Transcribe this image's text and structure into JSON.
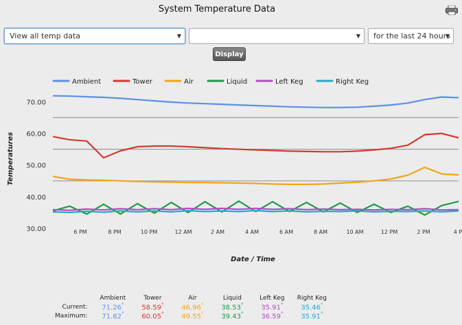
{
  "page": {
    "title": "System Temperature Data"
  },
  "controls": {
    "select1": "View all temp data",
    "select2": "",
    "select3": "for the last 24 hours",
    "display_button": "Display"
  },
  "colors": {
    "Ambient": "#5b8fe8",
    "Tower": "#d23a2f",
    "Air": "#f2a516",
    "Liquid": "#1e9a4a",
    "Left Keg": "#b34bc4",
    "Right Keg": "#25a9c9"
  },
  "chart_data": {
    "type": "line",
    "title": "",
    "xlabel": "Date / Time",
    "ylabel": "Temperatures",
    "ylim": [
      30,
      74
    ],
    "yticks": [
      "70.00",
      "60.00",
      "50.00",
      "40.00",
      "30.00"
    ],
    "xticks": [
      "6 PM",
      "8 PM",
      "10 PM",
      "12 AM",
      "2 AM",
      "4 AM",
      "6 AM",
      "8 AM",
      "10 AM",
      "12 PM",
      "2 PM",
      "4 P"
    ],
    "legend_position": "top",
    "threshold_lines": [
      65,
      55,
      45
    ],
    "x": [
      0,
      1,
      2,
      3,
      4,
      5,
      6,
      7,
      8,
      9,
      10,
      11,
      12,
      13,
      14,
      15,
      16,
      17,
      18,
      19,
      20,
      21,
      22,
      23,
      24
    ],
    "series": [
      {
        "name": "Ambient",
        "values": [
          71.9,
          71.8,
          71.6,
          71.4,
          71.1,
          70.7,
          70.3,
          69.9,
          69.6,
          69.4,
          69.2,
          69.0,
          68.8,
          68.6,
          68.4,
          68.3,
          68.2,
          68.2,
          68.3,
          68.6,
          69.0,
          69.6,
          70.7,
          71.5,
          71.3
        ]
      },
      {
        "name": "Tower",
        "values": [
          59.0,
          58.0,
          57.6,
          52.3,
          54.5,
          55.8,
          56.0,
          56.0,
          55.8,
          55.5,
          55.2,
          55.0,
          54.8,
          54.6,
          54.4,
          54.3,
          54.2,
          54.2,
          54.4,
          54.8,
          55.3,
          56.3,
          59.6,
          60.0,
          58.6
        ]
      },
      {
        "name": "Air",
        "values": [
          46.4,
          45.5,
          45.3,
          45.2,
          45.0,
          44.8,
          44.7,
          44.6,
          44.5,
          44.5,
          44.4,
          44.3,
          44.2,
          44.0,
          43.9,
          43.9,
          44.0,
          44.3,
          44.6,
          45.0,
          45.6,
          46.8,
          49.3,
          47.2,
          46.9
        ]
      },
      {
        "name": "Liquid",
        "values": [
          35.5,
          37.0,
          34.5,
          37.6,
          34.5,
          37.8,
          34.8,
          38.2,
          35.0,
          38.4,
          35.2,
          38.6,
          35.3,
          38.4,
          35.3,
          38.2,
          35.2,
          38.0,
          35.0,
          37.6,
          35.0,
          37.0,
          34.2,
          37.2,
          38.5
        ]
      },
      {
        "name": "Left Keg",
        "values": [
          35.9,
          35.7,
          36.1,
          35.8,
          36.2,
          35.9,
          36.2,
          35.9,
          36.3,
          36.0,
          36.3,
          36.0,
          36.3,
          36.0,
          36.2,
          35.9,
          36.1,
          35.9,
          36.0,
          35.8,
          36.0,
          35.9,
          36.2,
          35.8,
          35.9
        ]
      },
      {
        "name": "Right Keg",
        "values": [
          35.2,
          35.0,
          35.4,
          35.1,
          35.5,
          35.2,
          35.5,
          35.2,
          35.6,
          35.3,
          35.5,
          35.3,
          35.6,
          35.3,
          35.5,
          35.2,
          35.4,
          35.3,
          35.5,
          35.2,
          35.4,
          35.3,
          35.5,
          35.2,
          35.5
        ]
      }
    ]
  },
  "stats": {
    "headers": [
      "Ambient",
      "Tower",
      "Air",
      "Liquid",
      "Left Keg",
      "Right Keg"
    ],
    "current_label": "Current:",
    "maximum_label": "Maximum:",
    "current": [
      "71.26",
      "58.59",
      "46.96",
      "38.53",
      "35.91",
      "35.46"
    ],
    "maximum": [
      "71.82",
      "60.05",
      "49.55",
      "39.43",
      "36.59",
      "35.91"
    ],
    "degree": "°"
  }
}
